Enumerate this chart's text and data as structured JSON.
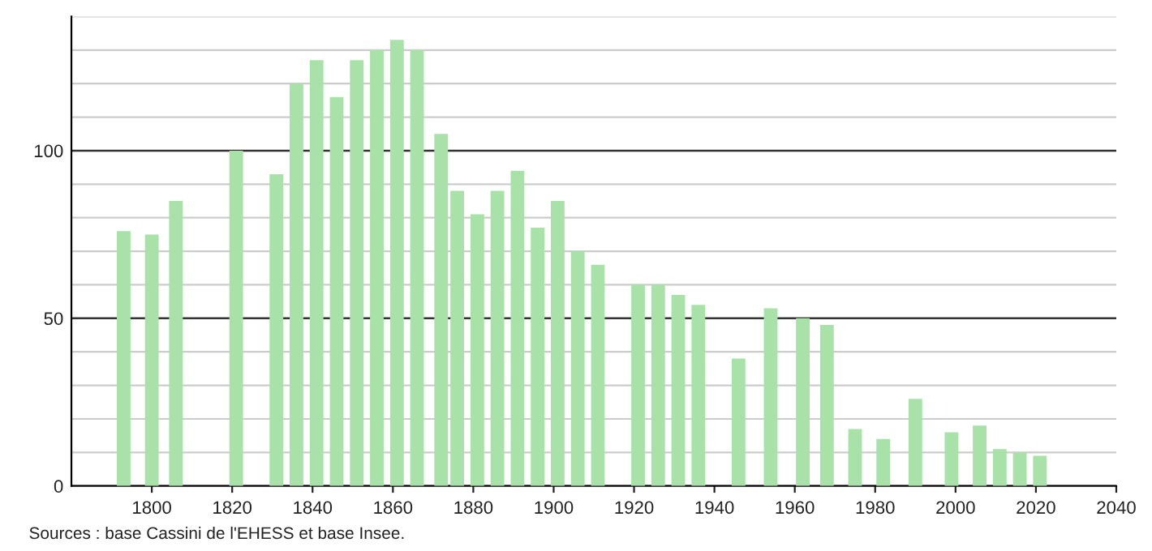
{
  "chart_data": {
    "type": "bar",
    "x": [
      1793,
      1800,
      1806,
      1821,
      1831,
      1836,
      1841,
      1846,
      1851,
      1856,
      1861,
      1866,
      1872,
      1876,
      1881,
      1886,
      1891,
      1896,
      1901,
      1906,
      1911,
      1921,
      1926,
      1931,
      1936,
      1946,
      1954,
      1962,
      1968,
      1975,
      1982,
      1990,
      1999,
      2006,
      2011,
      2016,
      2021
    ],
    "values": [
      76,
      75,
      85,
      100,
      93,
      120,
      127,
      116,
      127,
      130,
      133,
      130,
      105,
      88,
      81,
      88,
      94,
      77,
      85,
      70,
      66,
      60,
      60,
      57,
      54,
      38,
      53,
      50,
      48,
      17,
      14,
      26,
      16,
      18,
      11,
      10,
      9
    ],
    "color": "#a8e2a8",
    "xlim": [
      1780,
      2040
    ],
    "xticks": [
      1800,
      1820,
      1840,
      1860,
      1880,
      1900,
      1920,
      1940,
      1960,
      1980,
      2000,
      2020,
      2040
    ],
    "ylim": [
      0,
      140
    ],
    "yticks": [
      0,
      {
        "value": 10,
        "label": null
      },
      {
        "value": 20,
        "label": null
      },
      {
        "value": 30,
        "label": null
      },
      {
        "value": 40,
        "label": null
      },
      50,
      {
        "value": 60,
        "label": null
      },
      {
        "value": 70,
        "label": null
      },
      {
        "value": 80,
        "label": null
      },
      {
        "value": 90,
        "label": null
      },
      100,
      {
        "value": 110,
        "label": null
      },
      {
        "value": 120,
        "label": null
      },
      {
        "value": 130,
        "label": null
      },
      {
        "value": 140,
        "label": null
      }
    ],
    "grid": "y",
    "annotations": [
      "Sources : base Cassini de l'EHESS et base Insee."
    ]
  }
}
